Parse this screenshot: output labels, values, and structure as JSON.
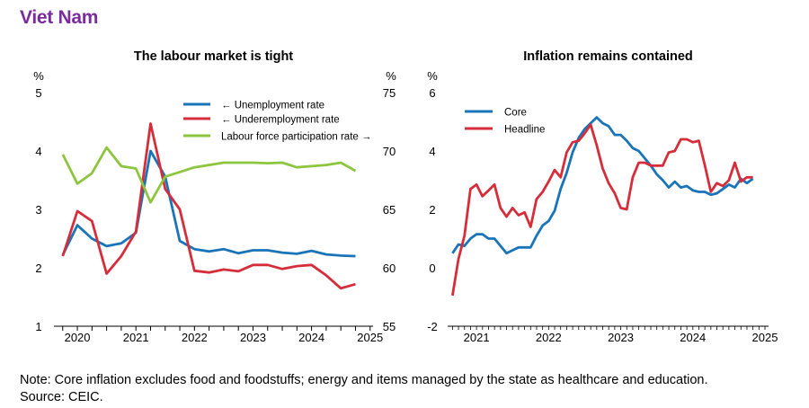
{
  "page": {
    "title": "Viet Nam",
    "note": "Note: Core inflation excludes food and foodstuffs; energy and items managed by the state as healthcare and education.",
    "source": "Source: CEIC."
  },
  "chart_data": [
    {
      "type": "line",
      "title": "The labour market is tight",
      "left_axis": {
        "unit": "%",
        "ylim": [
          1,
          5
        ],
        "ticks": [
          1,
          2,
          3,
          4,
          5
        ]
      },
      "right_axis": {
        "unit": "%",
        "ylim": [
          55,
          75
        ],
        "ticks": [
          55,
          60,
          65,
          70,
          75
        ]
      },
      "x_range": [
        2019.6,
        2025.05
      ],
      "x_ticks": [
        2020,
        2021,
        2022,
        2023,
        2024,
        2025
      ],
      "x_tick_labels": [
        "2020",
        "2021",
        "2022",
        "2023",
        "2024",
        "2025"
      ],
      "legend": "top-right",
      "series": [
        {
          "name": "← Unemployment rate",
          "axis": "left",
          "color": "#1a74b8",
          "x": [
            2019.75,
            2020.0,
            2020.25,
            2020.5,
            2020.75,
            2021.0,
            2021.25,
            2021.5,
            2021.75,
            2022.0,
            2022.25,
            2022.5,
            2022.75,
            2023.0,
            2023.25,
            2023.5,
            2023.75,
            2024.0,
            2024.25,
            2024.5,
            2024.75
          ],
          "values": [
            2.22,
            2.73,
            2.5,
            2.37,
            2.42,
            2.6,
            4.0,
            3.56,
            2.46,
            2.32,
            2.28,
            2.32,
            2.25,
            2.3,
            2.3,
            2.26,
            2.24,
            2.29,
            2.23,
            2.21,
            2.2
          ]
        },
        {
          "name": "← Underemployment rate",
          "axis": "left",
          "color": "#d62d3a",
          "x": [
            2019.75,
            2020.0,
            2020.25,
            2020.5,
            2020.75,
            2021.0,
            2021.25,
            2021.5,
            2021.75,
            2022.0,
            2022.25,
            2022.5,
            2022.75,
            2023.0,
            2023.25,
            2023.5,
            2023.75,
            2024.0,
            2024.25,
            2024.5,
            2024.75
          ],
          "values": [
            2.2,
            2.97,
            2.8,
            1.9,
            2.2,
            2.62,
            4.47,
            3.35,
            3.0,
            1.95,
            1.92,
            1.97,
            1.94,
            2.05,
            2.05,
            1.98,
            2.03,
            2.05,
            1.87,
            1.65,
            1.72
          ]
        },
        {
          "name": "Labour force participation rate →",
          "axis": "right",
          "color": "#8cc63f",
          "x": [
            2019.75,
            2020.0,
            2020.25,
            2020.5,
            2020.75,
            2021.0,
            2021.25,
            2021.5,
            2021.75,
            2022.0,
            2022.25,
            2022.5,
            2022.75,
            2023.0,
            2023.25,
            2023.5,
            2023.75,
            2024.0,
            2024.25,
            2024.5,
            2024.75
          ],
          "values": [
            69.7,
            67.2,
            68.1,
            70.3,
            68.7,
            68.5,
            65.6,
            67.8,
            68.2,
            68.6,
            68.8,
            69.0,
            69.0,
            69.0,
            68.95,
            69.0,
            68.6,
            68.7,
            68.8,
            69.0,
            68.3
          ]
        }
      ]
    },
    {
      "type": "line",
      "title": "Inflation remains contained",
      "y_axis": {
        "unit": "%",
        "ylim": [
          -2,
          6
        ],
        "ticks": [
          -2,
          0,
          2,
          4,
          6
        ]
      },
      "x_range": [
        2020.6,
        2025.05
      ],
      "x_ticks": [
        2021,
        2022,
        2023,
        2024,
        2025
      ],
      "x_tick_labels": [
        "2021",
        "2022",
        "2023",
        "2024",
        "2025"
      ],
      "legend": "top-left",
      "series": [
        {
          "name": "Core",
          "color": "#1a74b8",
          "x": [
            2020.667,
            2020.75,
            2020.833,
            2020.917,
            2021.0,
            2021.083,
            2021.167,
            2021.25,
            2021.333,
            2021.417,
            2021.5,
            2021.583,
            2021.667,
            2021.75,
            2021.833,
            2021.917,
            2022.0,
            2022.083,
            2022.167,
            2022.25,
            2022.333,
            2022.417,
            2022.5,
            2022.583,
            2022.667,
            2022.75,
            2022.833,
            2022.917,
            2023.0,
            2023.083,
            2023.167,
            2023.25,
            2023.333,
            2023.417,
            2023.5,
            2023.583,
            2023.667,
            2023.75,
            2023.833,
            2023.917,
            2024.0,
            2024.083,
            2024.167,
            2024.25,
            2024.333,
            2024.417,
            2024.5,
            2024.583,
            2024.667,
            2024.75,
            2024.833
          ],
          "values": [
            0.5,
            0.8,
            0.75,
            1.0,
            1.15,
            1.15,
            1.0,
            1.0,
            0.75,
            0.5,
            0.6,
            0.7,
            0.7,
            0.7,
            1.1,
            1.45,
            1.6,
            1.95,
            2.7,
            3.25,
            3.95,
            4.45,
            4.75,
            4.95,
            5.15,
            4.95,
            4.85,
            4.55,
            4.55,
            4.35,
            4.1,
            4.0,
            3.75,
            3.5,
            3.2,
            3.0,
            2.75,
            2.95,
            2.75,
            2.8,
            2.65,
            2.6,
            2.6,
            2.5,
            2.55,
            2.7,
            2.85,
            2.75,
            3.05,
            2.9,
            3.05
          ]
        },
        {
          "name": "Headline",
          "color": "#d62d3a",
          "x": [
            2020.667,
            2020.75,
            2020.833,
            2020.917,
            2021.0,
            2021.083,
            2021.167,
            2021.25,
            2021.333,
            2021.417,
            2021.5,
            2021.583,
            2021.667,
            2021.75,
            2021.833,
            2021.917,
            2022.0,
            2022.083,
            2022.167,
            2022.25,
            2022.333,
            2022.417,
            2022.5,
            2022.583,
            2022.667,
            2022.75,
            2022.833,
            2022.917,
            2023.0,
            2023.083,
            2023.167,
            2023.25,
            2023.333,
            2023.417,
            2023.5,
            2023.583,
            2023.667,
            2023.75,
            2023.833,
            2023.917,
            2024.0,
            2024.083,
            2024.167,
            2024.25,
            2024.333,
            2024.417,
            2024.5,
            2024.583,
            2024.667,
            2024.75,
            2024.833
          ],
          "values": [
            -0.95,
            0.3,
            1.1,
            2.7,
            2.85,
            2.45,
            2.65,
            2.85,
            2.05,
            1.75,
            2.05,
            1.8,
            1.9,
            1.4,
            2.35,
            2.6,
            2.95,
            3.35,
            3.1,
            3.95,
            4.3,
            4.35,
            4.6,
            4.9,
            4.2,
            3.4,
            2.9,
            2.55,
            2.05,
            2.0,
            3.1,
            3.6,
            3.6,
            3.5,
            3.5,
            3.5,
            3.95,
            4.0,
            4.4,
            4.4,
            4.3,
            4.35,
            3.5,
            2.6,
            2.9,
            2.8,
            3.0,
            3.6,
            2.95,
            3.1,
            3.1
          ]
        }
      ]
    }
  ]
}
